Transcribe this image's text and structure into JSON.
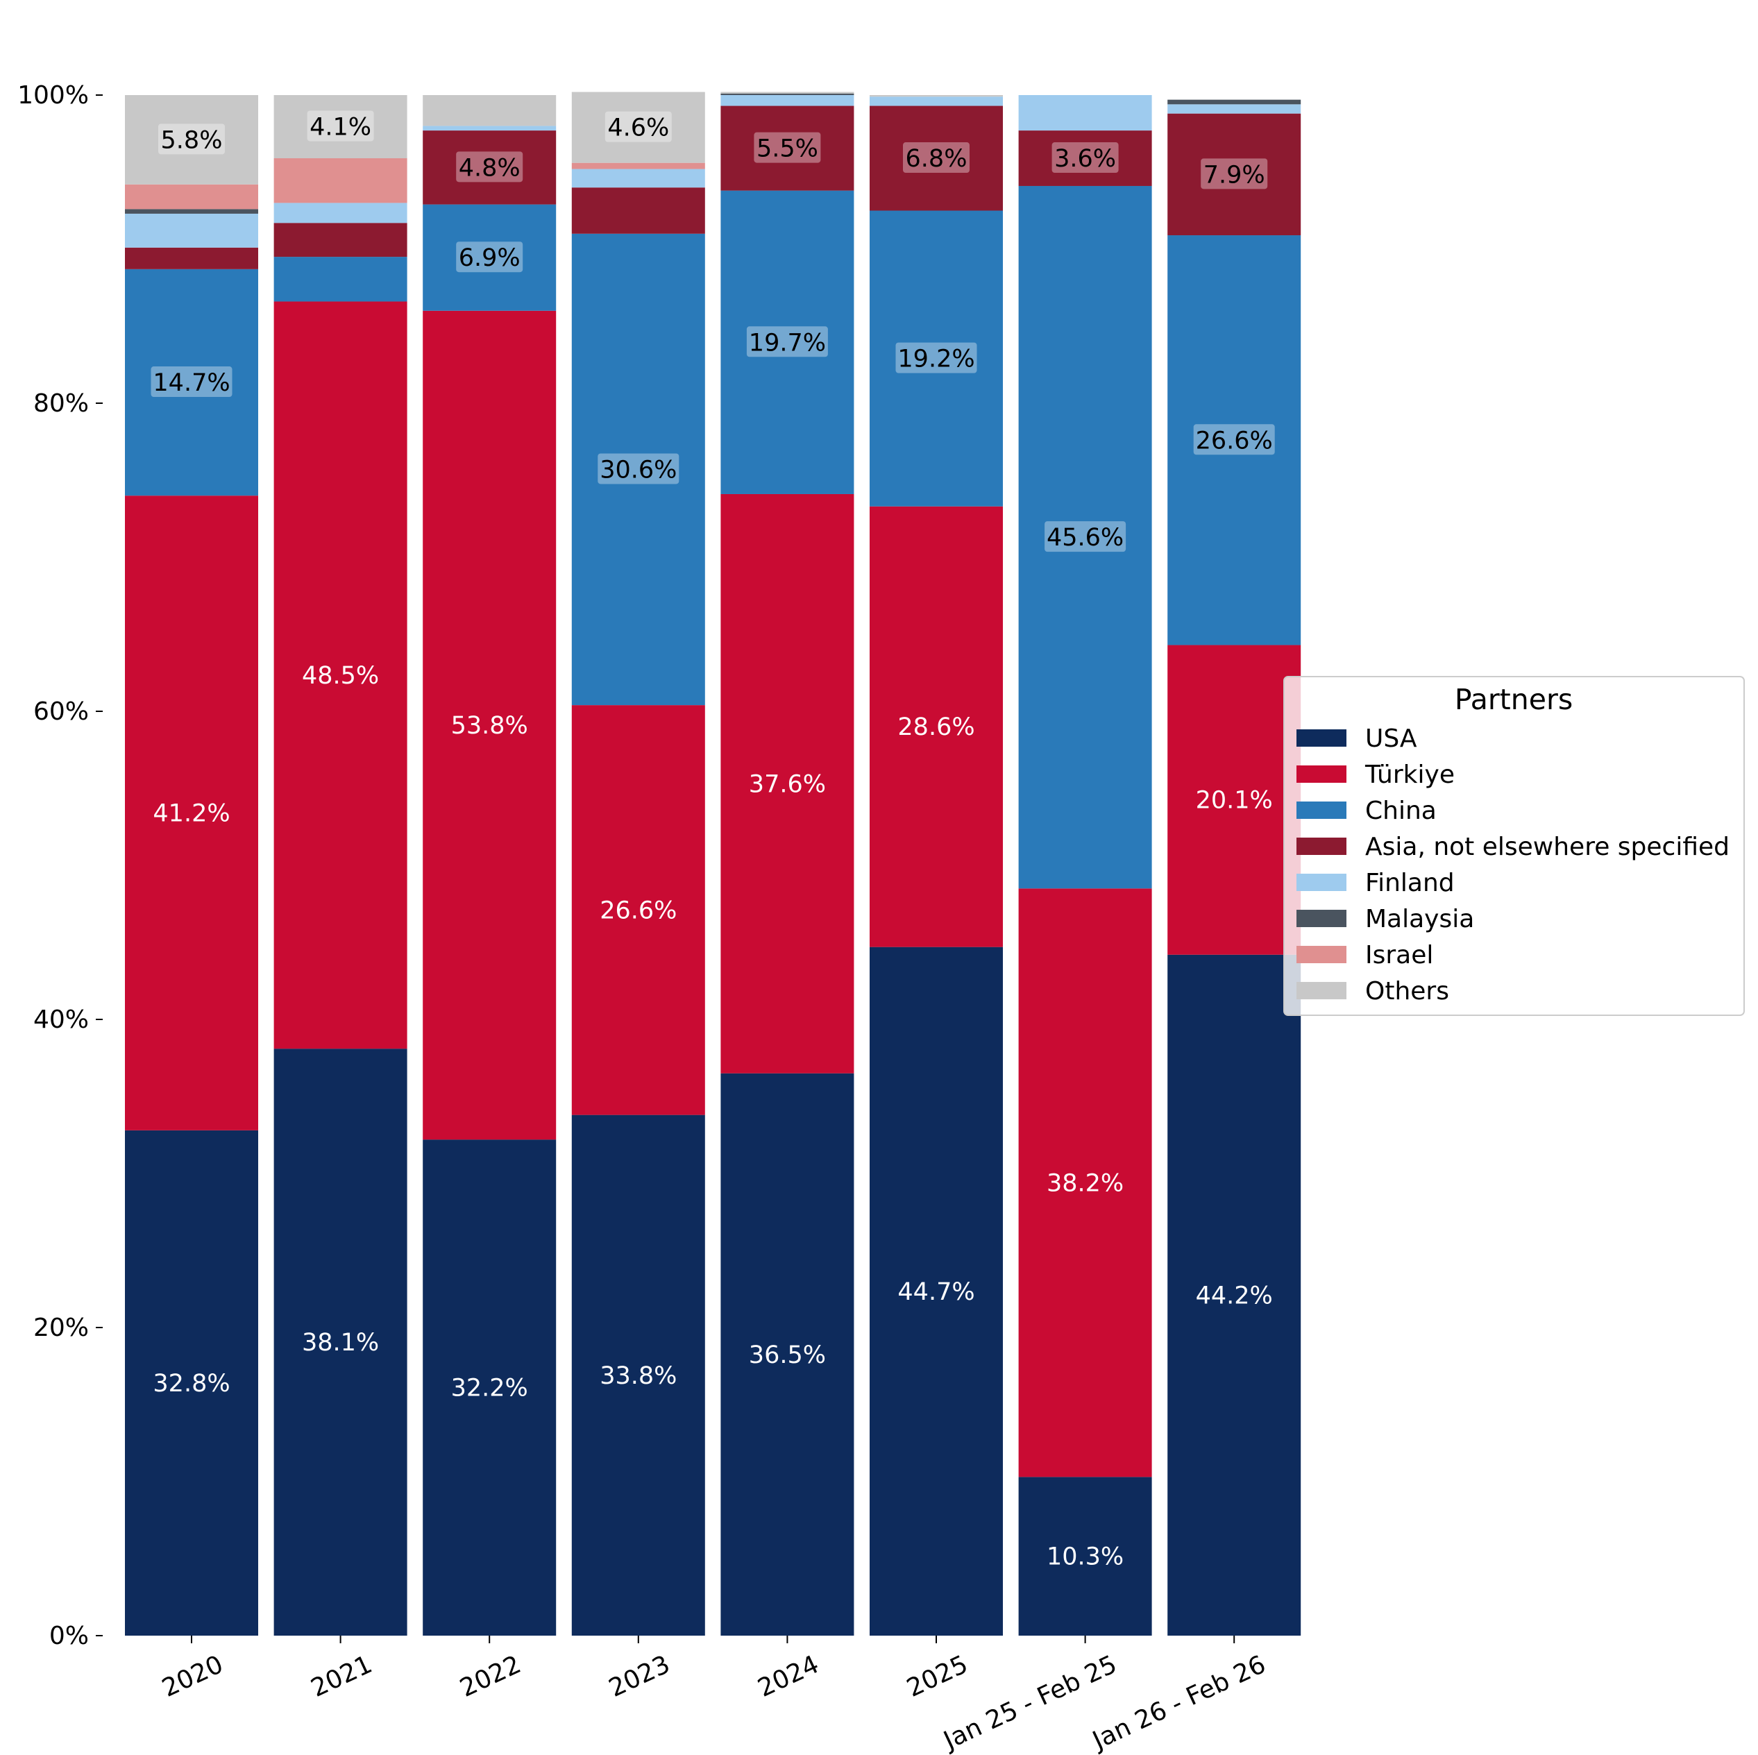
{
  "chart_data": {
    "type": "bar",
    "stacked": true,
    "categories": [
      "2020",
      "2021",
      "2022",
      "2023",
      "2024",
      "2025",
      "Jan 25 - Feb 25",
      "Jan 26 - Feb 26"
    ],
    "ylim": [
      0,
      100
    ],
    "yticks": [
      0,
      20,
      40,
      60,
      80,
      100
    ],
    "ytick_labels": [
      "0%",
      "20%",
      "40%",
      "60%",
      "80%",
      "100%"
    ],
    "grid": false,
    "legend": {
      "title": "Partners",
      "placement": "right"
    },
    "series": [
      {
        "name": "USA",
        "color": "#0e2b5c",
        "values": [
          32.8,
          38.1,
          32.2,
          33.8,
          36.5,
          44.7,
          10.3,
          44.2
        ],
        "labels": [
          "32.8%",
          "38.1%",
          "32.2%",
          "33.8%",
          "36.5%",
          "44.7%",
          "10.3%",
          "44.2%"
        ]
      },
      {
        "name": "Türkiye",
        "color": "#c90b33",
        "values": [
          41.2,
          48.5,
          53.8,
          26.6,
          37.6,
          28.6,
          38.2,
          20.1
        ],
        "labels": [
          "41.2%",
          "48.5%",
          "53.8%",
          "26.6%",
          "37.6%",
          "28.6%",
          "38.2%",
          "20.1%"
        ]
      },
      {
        "name": "China",
        "color": "#2a7ab9",
        "values": [
          14.7,
          2.9,
          6.9,
          30.6,
          19.7,
          19.2,
          45.6,
          26.6
        ],
        "labels": [
          "14.7%",
          "",
          "6.9%",
          "30.6%",
          "19.7%",
          "19.2%",
          "45.6%",
          "26.6%"
        ]
      },
      {
        "name": "Asia, not elsewhere specified",
        "color": "#8c1a30",
        "values": [
          1.4,
          2.2,
          4.8,
          3.0,
          5.5,
          6.8,
          3.6,
          7.9
        ],
        "labels": [
          "",
          "",
          "4.8%",
          "",
          "5.5%",
          "6.8%",
          "3.6%",
          "7.9%"
        ]
      },
      {
        "name": "Finland",
        "color": "#9ecbee",
        "values": [
          2.2,
          1.3,
          0.3,
          1.2,
          0.7,
          0.6,
          2.3,
          0.6
        ],
        "labels": [
          "",
          "",
          "",
          "",
          "",
          "",
          "",
          ""
        ]
      },
      {
        "name": "Malaysia",
        "color": "#4a545f",
        "values": [
          0.3,
          0.0,
          0.0,
          0.0,
          0.1,
          0.0,
          0.0,
          0.3
        ],
        "labels": [
          "",
          "",
          "",
          "",
          "",
          "",
          "",
          ""
        ]
      },
      {
        "name": "Israel",
        "color": "#e09090",
        "values": [
          1.6,
          2.9,
          0.0,
          0.4,
          0.0,
          0.0,
          0.0,
          0.0
        ],
        "labels": [
          "",
          "",
          "",
          "",
          "",
          "",
          "",
          ""
        ]
      },
      {
        "name": "Others",
        "color": "#c8c8c8",
        "values": [
          5.8,
          4.1,
          2.0,
          4.6,
          0.1,
          0.1,
          0.0,
          0.0
        ],
        "labels": [
          "5.8%",
          "4.1%",
          "",
          "4.6%",
          "",
          "",
          "",
          ""
        ]
      }
    ]
  }
}
